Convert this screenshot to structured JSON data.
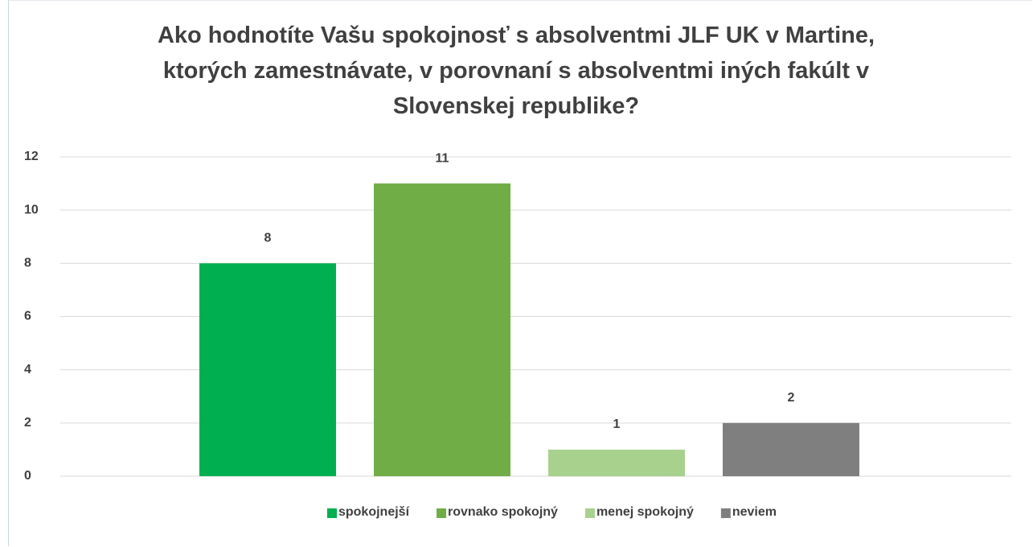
{
  "chart_data": {
    "type": "bar",
    "title": "Ako hodnotíte Vašu spokojnosť s absolventmi JLF UK v Martine, ktorých zamestnávate, v porovnaní s absolventmi iných fakúlt v Slovenskej republike?",
    "categories": [
      null
    ],
    "series": [
      {
        "name": "spokojnejší",
        "color": "#00b050",
        "values": [
          8
        ]
      },
      {
        "name": "rovnako spokojný",
        "color": "#70ad47",
        "values": [
          11
        ]
      },
      {
        "name": "menej spokojný",
        "color": "#a9d18e",
        "values": [
          1
        ]
      },
      {
        "name": "neviem",
        "color": "#7f7f7f",
        "values": [
          2
        ]
      }
    ],
    "ylim": [
      0,
      12
    ],
    "yticks": [
      0,
      2,
      4,
      6,
      8,
      10,
      12
    ],
    "grid": true,
    "legend": "bottom"
  }
}
